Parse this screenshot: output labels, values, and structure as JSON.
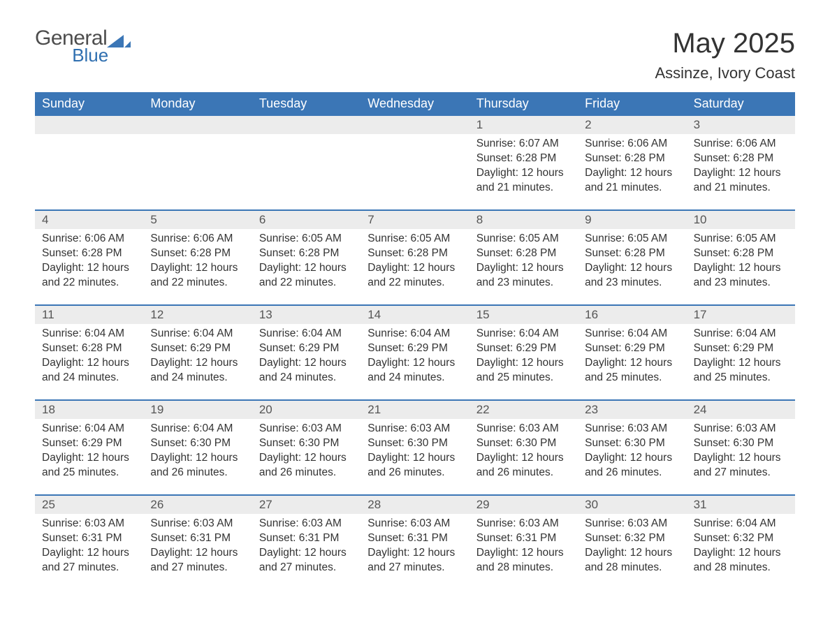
{
  "colors": {
    "header_bg": "#3b76b6",
    "header_text": "#ffffff",
    "daynum_bg": "#ececec",
    "text": "#333333",
    "logo_gray": "#4d4d4d",
    "logo_blue": "#2f6fb0",
    "rule": "#3b76b6",
    "page_bg": "#ffffff"
  },
  "typography": {
    "title_fontsize": 40,
    "subtitle_fontsize": 22,
    "header_fontsize": 18,
    "daynum_fontsize": 17,
    "body_fontsize": 15.5,
    "logo_general_fontsize": 30,
    "logo_blue_fontsize": 26
  },
  "logo": {
    "general": "General",
    "blue": "Blue"
  },
  "title": "May 2025",
  "subtitle": "Assinze, Ivory Coast",
  "day_labels": [
    "Sunday",
    "Monday",
    "Tuesday",
    "Wednesday",
    "Thursday",
    "Friday",
    "Saturday"
  ],
  "field_labels": {
    "sunrise": "Sunrise",
    "sunset": "Sunset",
    "daylight": "Daylight"
  },
  "weeks": [
    [
      null,
      null,
      null,
      null,
      {
        "n": "1",
        "sunrise": "6:07 AM",
        "sunset": "6:28 PM",
        "daylight": "12 hours and 21 minutes."
      },
      {
        "n": "2",
        "sunrise": "6:06 AM",
        "sunset": "6:28 PM",
        "daylight": "12 hours and 21 minutes."
      },
      {
        "n": "3",
        "sunrise": "6:06 AM",
        "sunset": "6:28 PM",
        "daylight": "12 hours and 21 minutes."
      }
    ],
    [
      {
        "n": "4",
        "sunrise": "6:06 AM",
        "sunset": "6:28 PM",
        "daylight": "12 hours and 22 minutes."
      },
      {
        "n": "5",
        "sunrise": "6:06 AM",
        "sunset": "6:28 PM",
        "daylight": "12 hours and 22 minutes."
      },
      {
        "n": "6",
        "sunrise": "6:05 AM",
        "sunset": "6:28 PM",
        "daylight": "12 hours and 22 minutes."
      },
      {
        "n": "7",
        "sunrise": "6:05 AM",
        "sunset": "6:28 PM",
        "daylight": "12 hours and 22 minutes."
      },
      {
        "n": "8",
        "sunrise": "6:05 AM",
        "sunset": "6:28 PM",
        "daylight": "12 hours and 23 minutes."
      },
      {
        "n": "9",
        "sunrise": "6:05 AM",
        "sunset": "6:28 PM",
        "daylight": "12 hours and 23 minutes."
      },
      {
        "n": "10",
        "sunrise": "6:05 AM",
        "sunset": "6:28 PM",
        "daylight": "12 hours and 23 minutes."
      }
    ],
    [
      {
        "n": "11",
        "sunrise": "6:04 AM",
        "sunset": "6:28 PM",
        "daylight": "12 hours and 24 minutes."
      },
      {
        "n": "12",
        "sunrise": "6:04 AM",
        "sunset": "6:29 PM",
        "daylight": "12 hours and 24 minutes."
      },
      {
        "n": "13",
        "sunrise": "6:04 AM",
        "sunset": "6:29 PM",
        "daylight": "12 hours and 24 minutes."
      },
      {
        "n": "14",
        "sunrise": "6:04 AM",
        "sunset": "6:29 PM",
        "daylight": "12 hours and 24 minutes."
      },
      {
        "n": "15",
        "sunrise": "6:04 AM",
        "sunset": "6:29 PM",
        "daylight": "12 hours and 25 minutes."
      },
      {
        "n": "16",
        "sunrise": "6:04 AM",
        "sunset": "6:29 PM",
        "daylight": "12 hours and 25 minutes."
      },
      {
        "n": "17",
        "sunrise": "6:04 AM",
        "sunset": "6:29 PM",
        "daylight": "12 hours and 25 minutes."
      }
    ],
    [
      {
        "n": "18",
        "sunrise": "6:04 AM",
        "sunset": "6:29 PM",
        "daylight": "12 hours and 25 minutes."
      },
      {
        "n": "19",
        "sunrise": "6:04 AM",
        "sunset": "6:30 PM",
        "daylight": "12 hours and 26 minutes."
      },
      {
        "n": "20",
        "sunrise": "6:03 AM",
        "sunset": "6:30 PM",
        "daylight": "12 hours and 26 minutes."
      },
      {
        "n": "21",
        "sunrise": "6:03 AM",
        "sunset": "6:30 PM",
        "daylight": "12 hours and 26 minutes."
      },
      {
        "n": "22",
        "sunrise": "6:03 AM",
        "sunset": "6:30 PM",
        "daylight": "12 hours and 26 minutes."
      },
      {
        "n": "23",
        "sunrise": "6:03 AM",
        "sunset": "6:30 PM",
        "daylight": "12 hours and 26 minutes."
      },
      {
        "n": "24",
        "sunrise": "6:03 AM",
        "sunset": "6:30 PM",
        "daylight": "12 hours and 27 minutes."
      }
    ],
    [
      {
        "n": "25",
        "sunrise": "6:03 AM",
        "sunset": "6:31 PM",
        "daylight": "12 hours and 27 minutes."
      },
      {
        "n": "26",
        "sunrise": "6:03 AM",
        "sunset": "6:31 PM",
        "daylight": "12 hours and 27 minutes."
      },
      {
        "n": "27",
        "sunrise": "6:03 AM",
        "sunset": "6:31 PM",
        "daylight": "12 hours and 27 minutes."
      },
      {
        "n": "28",
        "sunrise": "6:03 AM",
        "sunset": "6:31 PM",
        "daylight": "12 hours and 27 minutes."
      },
      {
        "n": "29",
        "sunrise": "6:03 AM",
        "sunset": "6:31 PM",
        "daylight": "12 hours and 28 minutes."
      },
      {
        "n": "30",
        "sunrise": "6:03 AM",
        "sunset": "6:32 PM",
        "daylight": "12 hours and 28 minutes."
      },
      {
        "n": "31",
        "sunrise": "6:04 AM",
        "sunset": "6:32 PM",
        "daylight": "12 hours and 28 minutes."
      }
    ]
  ]
}
